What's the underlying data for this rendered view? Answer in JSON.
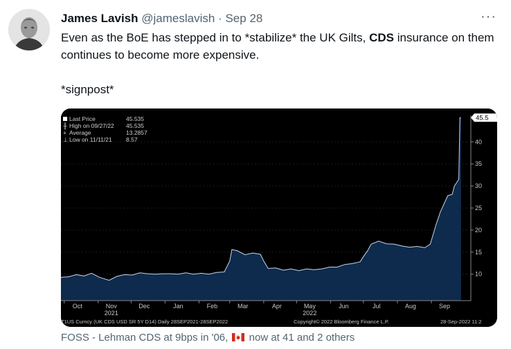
{
  "tweet": {
    "author_name": "James Lavish",
    "author_handle": "@jameslavish",
    "separator": "·",
    "date": "Sep 28",
    "more_icon": "more-dots-icon",
    "text_part1": "Even as the BoE has stepped in to *stabilize* the UK Gilts, ",
    "text_bold": "CDS",
    "text_part2": " insurance on them continues to become more expensive.",
    "text_line2": "*signpost*"
  },
  "footer": {
    "prefix": "FOSS - Lehman CDS at 9bps in '06,",
    "flag_icon": "canada-flag-icon",
    "suffix": "now at 41",
    "others": "and 2 others"
  },
  "legend": {
    "rows": [
      {
        "label": "Last Price",
        "value": "45.535"
      },
      {
        "label": "High on 09/27/22",
        "value": "45.535"
      },
      {
        "label": "Average",
        "value": "13.2857"
      },
      {
        "label": "Low on 11/11/21",
        "value": "8.57"
      }
    ]
  },
  "chart_footer": {
    "left": "T1US Curncy (UK CDS USD SR 5Y D14)  Daily 28SEP2021-28SEP2022",
    "center": "Copyright© 2022 Bloomberg Finance L.P.",
    "right": "28-Sep-2022 11:2"
  },
  "colors": {
    "chart_bg": "#000000",
    "area_fill": "#0e2a4d",
    "line": "#c8d8ee",
    "last_price_tag": "#ffffff"
  },
  "chart_data": {
    "type": "area",
    "title": "",
    "xlabel": "",
    "ylabel": "",
    "ylim": [
      4,
      46
    ],
    "y_ticks": [
      10,
      15,
      20,
      25,
      30,
      35,
      40
    ],
    "last_value_label": "45.5",
    "x_tick_labels": [
      "Oct",
      "Nov",
      "Dec",
      "Jan",
      "Feb",
      "Mar",
      "Apr",
      "May",
      "Jun",
      "Jul",
      "Aug",
      "Sep"
    ],
    "x_year_labels": [
      {
        "month": "Nov",
        "year": "2021"
      },
      {
        "month": "May",
        "year": "2022"
      }
    ],
    "x": [
      "2021-09-28",
      "2021-10-05",
      "2021-10-12",
      "2021-10-19",
      "2021-10-26",
      "2021-11-02",
      "2021-11-11",
      "2021-11-18",
      "2021-11-25",
      "2021-12-02",
      "2021-12-09",
      "2021-12-16",
      "2021-12-23",
      "2021-12-30",
      "2022-01-06",
      "2022-01-13",
      "2022-01-20",
      "2022-01-27",
      "2022-02-03",
      "2022-02-10",
      "2022-02-17",
      "2022-02-24",
      "2022-03-01",
      "2022-03-03",
      "2022-03-08",
      "2022-03-15",
      "2022-03-22",
      "2022-03-29",
      "2022-04-01",
      "2022-04-05",
      "2022-04-12",
      "2022-04-19",
      "2022-04-26",
      "2022-05-03",
      "2022-05-10",
      "2022-05-17",
      "2022-05-24",
      "2022-05-31",
      "2022-06-07",
      "2022-06-14",
      "2022-06-21",
      "2022-06-28",
      "2022-07-01",
      "2022-07-05",
      "2022-07-08",
      "2022-07-15",
      "2022-07-22",
      "2022-07-29",
      "2022-08-05",
      "2022-08-12",
      "2022-08-19",
      "2022-08-26",
      "2022-08-31",
      "2022-09-05",
      "2022-09-09",
      "2022-09-13",
      "2022-09-16",
      "2022-09-20",
      "2022-09-22",
      "2022-09-26",
      "2022-09-27",
      "2022-09-28"
    ],
    "values": [
      9.3,
      9.4,
      9.9,
      9.6,
      10.2,
      9.3,
      8.6,
      9.5,
      9.9,
      9.8,
      10.3,
      10.1,
      10.0,
      10.1,
      10.1,
      10.0,
      10.3,
      10.0,
      10.2,
      10.0,
      10.4,
      10.5,
      13.0,
      15.6,
      15.3,
      14.4,
      14.8,
      14.5,
      13.0,
      11.3,
      11.4,
      10.9,
      11.2,
      10.8,
      11.2,
      11.0,
      11.2,
      11.6,
      11.6,
      12.2,
      12.4,
      12.8,
      14.0,
      15.4,
      16.8,
      17.5,
      16.9,
      16.8,
      16.4,
      16.1,
      16.3,
      16.0,
      16.8,
      21.0,
      24.0,
      26.2,
      27.8,
      28.1,
      30.0,
      31.5,
      45.5,
      45.5
    ]
  }
}
